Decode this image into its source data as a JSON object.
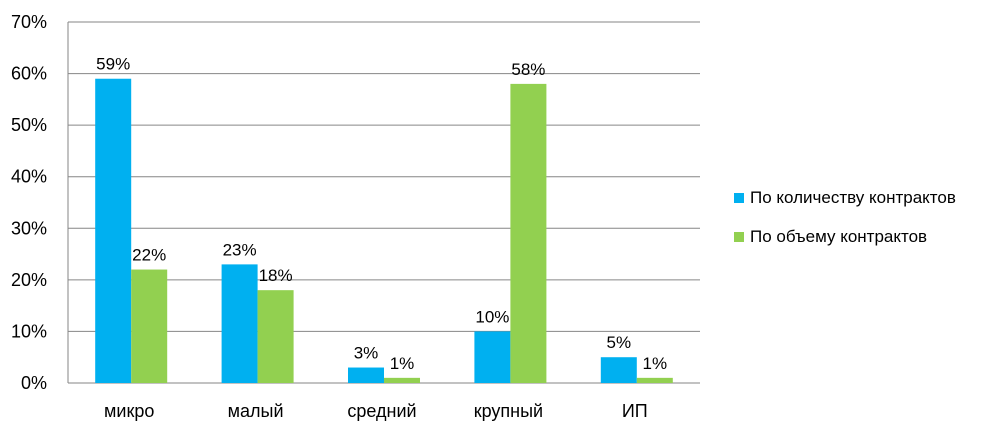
{
  "chart_data": {
    "type": "bar",
    "categories": [
      "микро",
      "малый",
      "средний",
      "крупный",
      "ИП"
    ],
    "series": [
      {
        "name": "По количеству контрактов",
        "values": [
          59,
          23,
          3,
          10,
          5
        ],
        "labels": [
          "59%",
          "23%",
          "3%",
          "10%",
          "5%"
        ],
        "color": "#00B0F0"
      },
      {
        "name": "По объему контрактов",
        "values": [
          22,
          18,
          1,
          58,
          1
        ],
        "labels": [
          "22%",
          "18%",
          "1%",
          "58%",
          "1%"
        ],
        "color": "#92D050"
      }
    ],
    "ylim": [
      0,
      70
    ],
    "yticks": [
      "0%",
      "10%",
      "20%",
      "30%",
      "40%",
      "50%",
      "60%",
      "70%"
    ],
    "grid": true,
    "legend_position": "right"
  }
}
